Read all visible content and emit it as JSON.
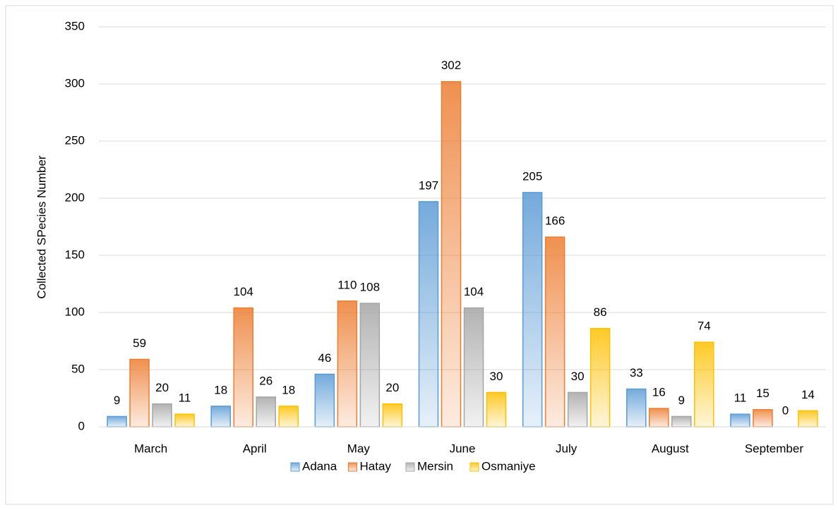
{
  "chart_data": {
    "type": "bar",
    "y_label": "Collected SPecies Number",
    "categories": [
      "March",
      "April",
      "May",
      "June",
      "July",
      "August",
      "September"
    ],
    "series": [
      {
        "name": "Adana",
        "color": "#5b9bd5",
        "values": [
          9,
          18,
          46,
          197,
          205,
          33,
          11
        ]
      },
      {
        "name": "Hatay",
        "color": "#ed7d31",
        "values": [
          59,
          104,
          110,
          302,
          166,
          16,
          15
        ]
      },
      {
        "name": "Mersin",
        "color": "#a5a5a5",
        "values": [
          20,
          26,
          108,
          104,
          30,
          9,
          0
        ]
      },
      {
        "name": "Osmaniye",
        "color": "#ffc000",
        "values": [
          11,
          18,
          20,
          30,
          86,
          74,
          14
        ]
      }
    ],
    "ylim": [
      0,
      350
    ],
    "yticks": [
      0,
      50,
      100,
      150,
      200,
      250,
      300,
      350
    ],
    "grid": true
  }
}
